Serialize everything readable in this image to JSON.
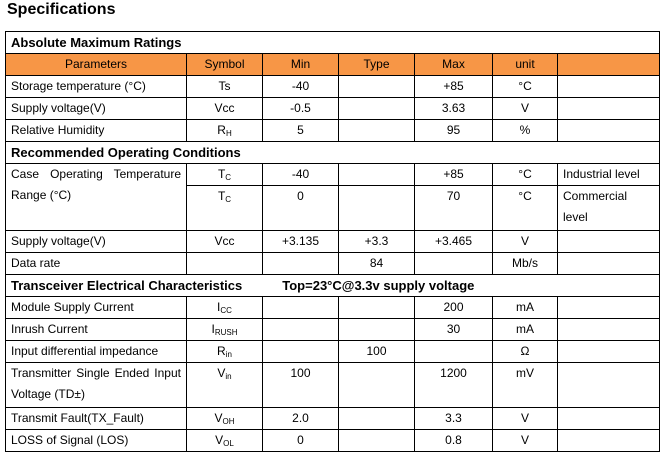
{
  "title": "Specifications",
  "header_bg": "#f79646",
  "columns": [
    "Parameters",
    "Symbol",
    "Min",
    "Type",
    "Max",
    "unit",
    ""
  ],
  "sections": [
    {
      "title": "Absolute Maximum Ratings",
      "subtitle": "",
      "header": true,
      "rows": [
        {
          "param": "Storage temperature (°C)",
          "sym": "Ts",
          "sub": "",
          "min": "-40",
          "typ": "",
          "max": "+85",
          "unit": "°C",
          "note": ""
        },
        {
          "param": "Supply voltage(V)",
          "sym": "Vcc",
          "sub": "",
          "min": "-0.5",
          "typ": "",
          "max": "3.63",
          "unit": "V",
          "note": ""
        },
        {
          "param": "Relative Humidity",
          "sym": "R",
          "sub": "H",
          "min": "5",
          "typ": "",
          "max": "95",
          "unit": "%",
          "note": ""
        }
      ]
    },
    {
      "title": "Recommended Operating Conditions",
      "subtitle": "",
      "header": false,
      "rows": [
        {
          "param": "Case Operating Temperature Range (°C)",
          "span": 2,
          "sym": "T",
          "sub": "C",
          "min": "-40",
          "typ": "",
          "max": "+85",
          "unit": "°C",
          "note": "Industrial level"
        },
        {
          "sym": "T",
          "sub": "C",
          "min": "0",
          "typ": "",
          "max": "70",
          "unit": "°C",
          "note": "Commercial level",
          "tall": true
        },
        {
          "param": "Supply voltage(V)",
          "sym": "Vcc",
          "sub": "",
          "min": "+3.135",
          "typ": "+3.3",
          "max": "+3.465",
          "unit": "V",
          "note": ""
        },
        {
          "param": "Data rate",
          "sym": "",
          "sub": "",
          "min": "",
          "typ": "84",
          "max": "",
          "unit": "Mb/s",
          "note": ""
        }
      ]
    },
    {
      "title": "Transceiver Electrical Characteristics",
      "subtitle": "Top=23°C@3.3v supply voltage",
      "header": false,
      "rows": [
        {
          "param": "Module Supply Current",
          "sym": "I",
          "sub": "CC",
          "min": "",
          "typ": "",
          "max": "200",
          "unit": "mA",
          "note": ""
        },
        {
          "param": "Inrush Current",
          "sym": "I",
          "sub": "RUSH",
          "min": "",
          "typ": "",
          "max": "30",
          "unit": "mA",
          "note": ""
        },
        {
          "param": "Input differential impedance",
          "sym": "R",
          "sub": "in",
          "min": "",
          "typ": "100",
          "max": "",
          "unit": "Ω",
          "note": ""
        },
        {
          "param": "Transmitter Single Ended Input Voltage (TD±)",
          "sym": "V",
          "sub": "in",
          "min": "100",
          "typ": "",
          "max": "1200",
          "unit": "mV",
          "note": "",
          "tall": true
        },
        {
          "param": "Transmit Fault(TX_Fault)",
          "sym": "V",
          "sub": "OH",
          "min": "2.0",
          "typ": "",
          "max": "3.3",
          "unit": "V",
          "note": ""
        },
        {
          "param": "LOSS of Signal (LOS)",
          "sym": "V",
          "sub": "OL",
          "min": "0",
          "typ": "",
          "max": "0.8",
          "unit": "V",
          "note": ""
        }
      ]
    }
  ]
}
